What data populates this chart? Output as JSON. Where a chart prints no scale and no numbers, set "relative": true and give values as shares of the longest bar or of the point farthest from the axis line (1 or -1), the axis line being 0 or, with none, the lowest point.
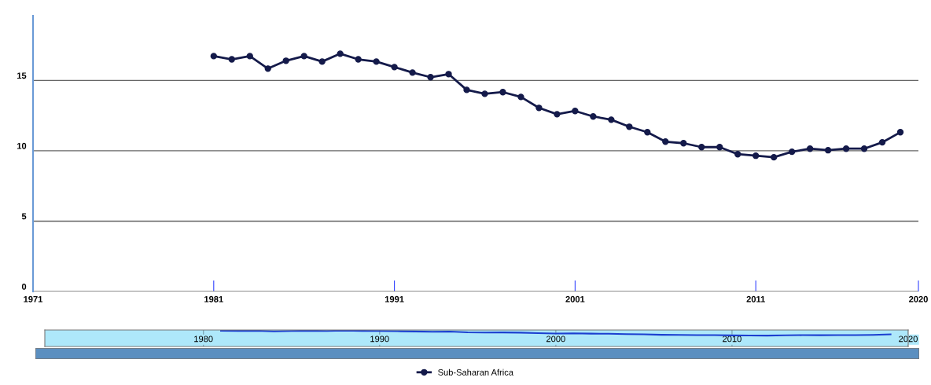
{
  "chart_data": [
    {
      "type": "line",
      "x": [
        1981,
        1982,
        1983,
        1984,
        1985,
        1986,
        1987,
        1988,
        1989,
        1990,
        1991,
        1992,
        1993,
        1994,
        1995,
        1996,
        1997,
        1998,
        1999,
        2000,
        2001,
        2002,
        2003,
        2004,
        2005,
        2006,
        2007,
        2008,
        2009,
        2010,
        2011,
        2012,
        2013,
        2014,
        2015,
        2016,
        2017,
        2018,
        2019
      ],
      "series": [
        {
          "name": "Sub-Saharan Africa",
          "color": "#141a4a",
          "values": [
            16.73,
            16.5,
            16.73,
            15.84,
            16.4,
            16.73,
            16.34,
            16.9,
            16.5,
            16.34,
            15.95,
            15.56,
            15.23,
            15.45,
            14.33,
            14.05,
            14.17,
            13.83,
            13.05,
            12.6,
            12.83,
            12.44,
            12.21,
            11.71,
            11.32,
            10.65,
            10.54,
            10.26,
            10.26,
            9.76,
            9.65,
            9.54,
            9.93,
            10.15,
            10.04,
            10.15,
            10.15,
            10.6,
            11.32
          ]
        }
      ],
      "xlim": [
        1971,
        2020
      ],
      "xticks": [
        1971,
        1981,
        1991,
        2001,
        2011,
        2020
      ],
      "ylim": [
        0,
        19.6
      ],
      "yticks": [
        0,
        5,
        10,
        15
      ],
      "grid": "y",
      "marker": "circle",
      "line_style": "solid",
      "legend": "bottom"
    },
    {
      "type": "line",
      "x": [
        1981,
        1982,
        1983,
        1984,
        1985,
        1986,
        1987,
        1988,
        1989,
        1990,
        1991,
        1992,
        1993,
        1994,
        1995,
        1996,
        1997,
        1998,
        1999,
        2000,
        2001,
        2002,
        2003,
        2004,
        2005,
        2006,
        2007,
        2008,
        2009,
        2010,
        2011,
        2012,
        2013,
        2014,
        2015,
        2016,
        2017,
        2018,
        2019
      ],
      "series": [
        {
          "color": "#1c3fd0",
          "values": [
            0.977,
            0.946,
            0.977,
            0.856,
            0.932,
            0.977,
            0.924,
            1,
            0.946,
            0.924,
            0.871,
            0.818,
            0.773,
            0.803,
            0.651,
            0.613,
            0.629,
            0.583,
            0.477,
            0.416,
            0.447,
            0.394,
            0.363,
            0.295,
            0.242,
            0.151,
            0.136,
            0.098,
            0.098,
            0.03,
            0.015,
            0,
            0.053,
            0.083,
            0.068,
            0.083,
            0.083,
            0.144,
            0.242
          ]
        }
      ],
      "xlim": [
        1971,
        2020
      ],
      "xticks": [
        1980,
        1990,
        2000,
        2010,
        2020
      ],
      "relative": true,
      "grid": "x",
      "tick_labels": "x",
      "marker": "none",
      "line_style": "solid"
    }
  ]
}
